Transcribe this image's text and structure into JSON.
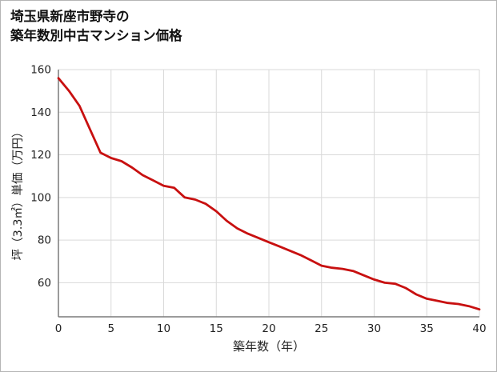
{
  "title": {
    "line1": "埼玉県新座市野寺の",
    "line2": "築年数別中古マンション価格"
  },
  "chart_data": {
    "type": "line",
    "title": "埼玉県新座市野寺の築年数別中古マンション価格",
    "xlabel": "築年数（年）",
    "ylabel": "坪（3.3㎡）単価（万円）",
    "x": [
      0,
      1,
      2,
      3,
      4,
      5,
      6,
      7,
      8,
      9,
      10,
      11,
      12,
      13,
      14,
      15,
      16,
      17,
      18,
      19,
      20,
      21,
      22,
      23,
      24,
      25,
      26,
      27,
      28,
      29,
      30,
      31,
      32,
      33,
      34,
      35,
      36,
      37,
      38,
      39,
      40
    ],
    "values": [
      156,
      150,
      143,
      132,
      121,
      118.5,
      117,
      114,
      110.5,
      108,
      105.5,
      104.5,
      100,
      99,
      97,
      93.5,
      89,
      85.5,
      83,
      81,
      79,
      77,
      75,
      73,
      70.5,
      68,
      67,
      66.5,
      65.5,
      63.5,
      61.5,
      60,
      59.5,
      57.5,
      54.5,
      52.5,
      51.5,
      50.5,
      50,
      49,
      47.5
    ],
    "x_ticks": [
      0,
      5,
      10,
      15,
      20,
      25,
      30,
      35,
      40
    ],
    "y_ticks": [
      60,
      80,
      100,
      120,
      140,
      160
    ],
    "xlim": [
      0,
      40
    ],
    "ylim": [
      44,
      160
    ],
    "grid": true,
    "legend": "none",
    "line_color": "#c81010"
  },
  "colors": {
    "grid": "#d9d9d9",
    "axis": "#7a7a7a",
    "tick_text": "#222222",
    "label_text": "#222222",
    "background": "#ffffff",
    "border": "#b5b5b5"
  }
}
